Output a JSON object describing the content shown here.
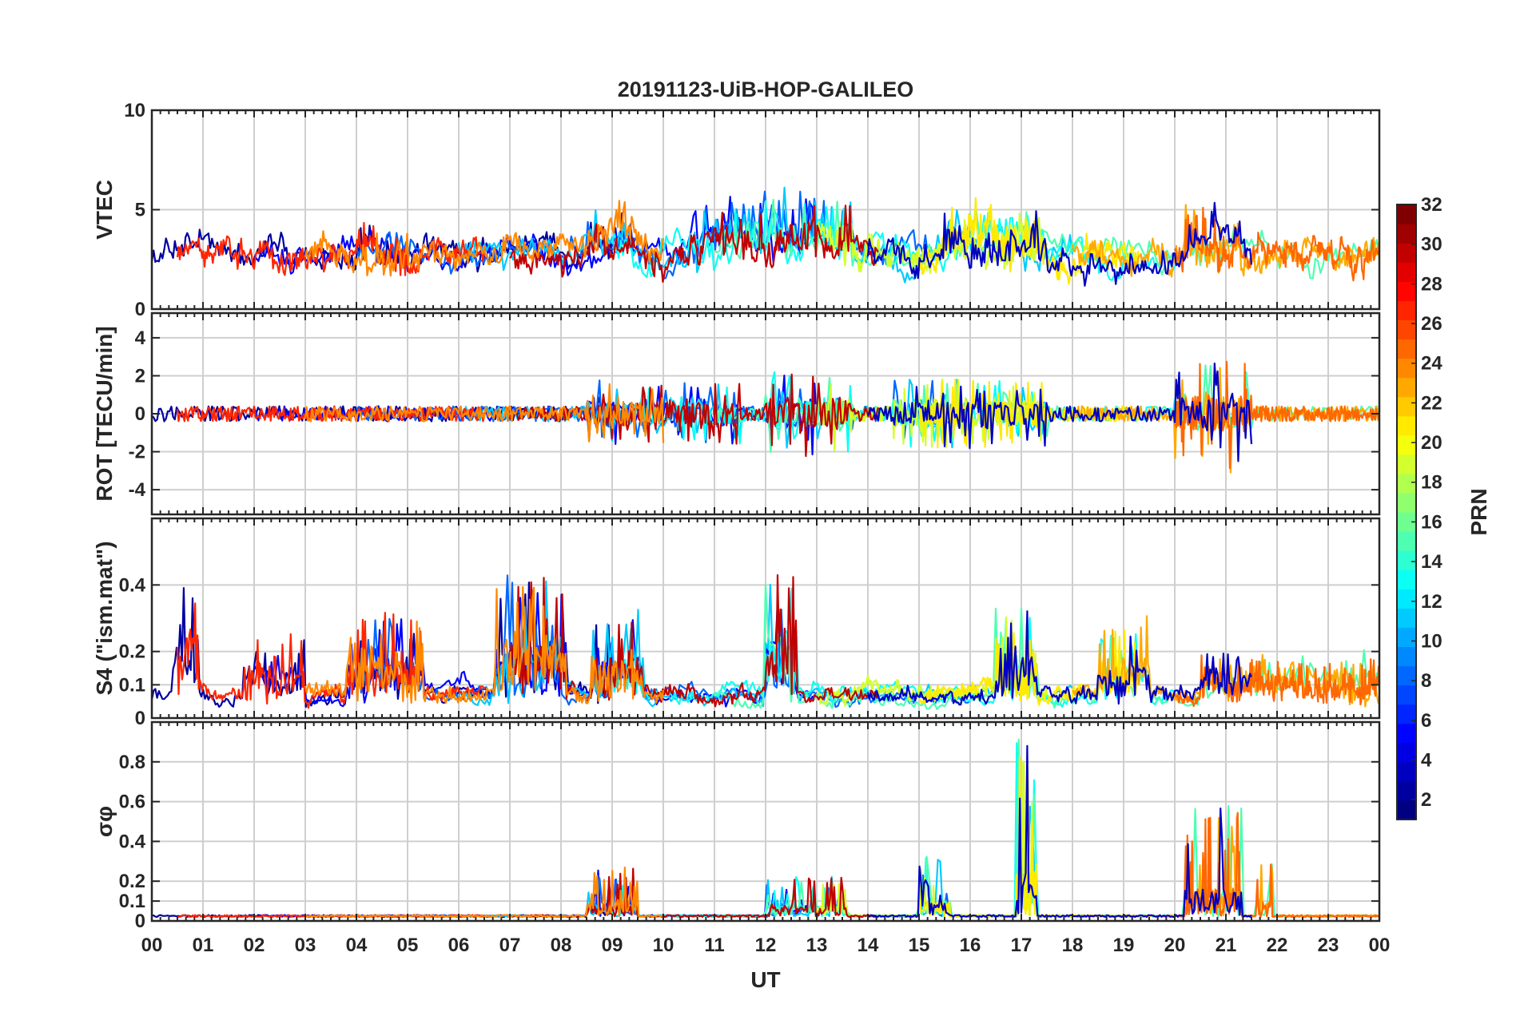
{
  "chart_data": {
    "type": "line",
    "title": "20191123-UiB-HOP-GALILEO",
    "xlabel": "UT",
    "x_ticks": [
      "00",
      "01",
      "02",
      "03",
      "04",
      "05",
      "06",
      "07",
      "08",
      "09",
      "10",
      "11",
      "12",
      "13",
      "14",
      "15",
      "16",
      "17",
      "18",
      "19",
      "20",
      "21",
      "22",
      "23",
      "00"
    ],
    "xlim": [
      0,
      24
    ],
    "grid": true,
    "colormap": "jet",
    "colorbar": {
      "label": "PRN",
      "range": [
        1,
        32
      ],
      "ticks": [
        "2",
        "4",
        "6",
        "8",
        "10",
        "12",
        "14",
        "16",
        "18",
        "20",
        "22",
        "24",
        "26",
        "28",
        "30",
        "32"
      ],
      "placement": "right"
    },
    "panels": [
      {
        "id": "vtec",
        "ylabel": "VTEC",
        "ylim": [
          0,
          10
        ],
        "y_ticks": [
          {
            "value": 0,
            "label": "0"
          },
          {
            "value": 5,
            "label": "5"
          },
          {
            "value": 10,
            "label": "10"
          }
        ],
        "baseline": 2.8,
        "spread": 0.9,
        "spiky": false,
        "bursts": [
          [
            4.0,
            5.0,
            1.4
          ],
          [
            8.5,
            9.5,
            1.5
          ],
          [
            10.5,
            12.5,
            2.2
          ],
          [
            12.0,
            13.7,
            2.5
          ],
          [
            15.5,
            17.5,
            1.8
          ],
          [
            20.2,
            21.3,
            1.8
          ]
        ]
      },
      {
        "id": "rot",
        "ylabel": "ROT [TECU/min]",
        "ylim": [
          -5.3,
          5.3
        ],
        "y_ticks": [
          {
            "value": -4,
            "label": "-4"
          },
          {
            "value": -2,
            "label": "-2"
          },
          {
            "value": 0,
            "label": "0"
          },
          {
            "value": 2,
            "label": "2"
          },
          {
            "value": 4,
            "label": "4"
          }
        ],
        "baseline": 0,
        "spread": 0.4,
        "spiky": true,
        "bursts": [
          [
            8.5,
            11.5,
            1.4
          ],
          [
            12.0,
            13.7,
            2.0
          ],
          [
            14.5,
            17.5,
            1.6
          ],
          [
            20.0,
            21.5,
            2.8
          ]
        ]
      },
      {
        "id": "s4",
        "ylabel": "S4 (\"ism.mat\")",
        "ylim": [
          0,
          0.6
        ],
        "y_ticks": [
          {
            "value": 0,
            "label": "0"
          },
          {
            "value": 0.1,
            "label": "0.1"
          },
          {
            "value": 0.2,
            "label": "0.2"
          },
          {
            "value": 0.4,
            "label": "0.4"
          }
        ],
        "baseline": 0.07,
        "spread": 0.03,
        "spiky": false,
        "bursts": [
          [
            0.4,
            0.9,
            0.35
          ],
          [
            1.8,
            3.0,
            0.2
          ],
          [
            3.8,
            5.3,
            0.25
          ],
          [
            6.7,
            8.1,
            0.35
          ],
          [
            8.6,
            9.6,
            0.25
          ],
          [
            12.0,
            12.6,
            0.4
          ],
          [
            16.5,
            17.3,
            0.25
          ],
          [
            18.5,
            19.5,
            0.2
          ],
          [
            20.5,
            24.0,
            0.12
          ]
        ]
      },
      {
        "id": "sigma",
        "ylabel": "σφ",
        "ylim": [
          0,
          1
        ],
        "y_ticks": [
          {
            "value": 0,
            "label": "0"
          },
          {
            "value": 0.1,
            "label": "0.1"
          },
          {
            "value": 0.2,
            "label": "0.2"
          },
          {
            "value": 0.4,
            "label": "0.4"
          },
          {
            "value": 0.6,
            "label": "0.6"
          },
          {
            "value": 0.8,
            "label": "0.8"
          }
        ],
        "baseline": 0.02,
        "spread": 0.01,
        "spiky": true,
        "bursts": [
          [
            8.5,
            9.5,
            0.25
          ],
          [
            12.0,
            13.6,
            0.2
          ],
          [
            15.0,
            15.6,
            0.3
          ],
          [
            16.9,
            17.3,
            0.9
          ],
          [
            20.2,
            21.3,
            0.55
          ],
          [
            21.6,
            21.9,
            0.3
          ]
        ]
      }
    ]
  }
}
